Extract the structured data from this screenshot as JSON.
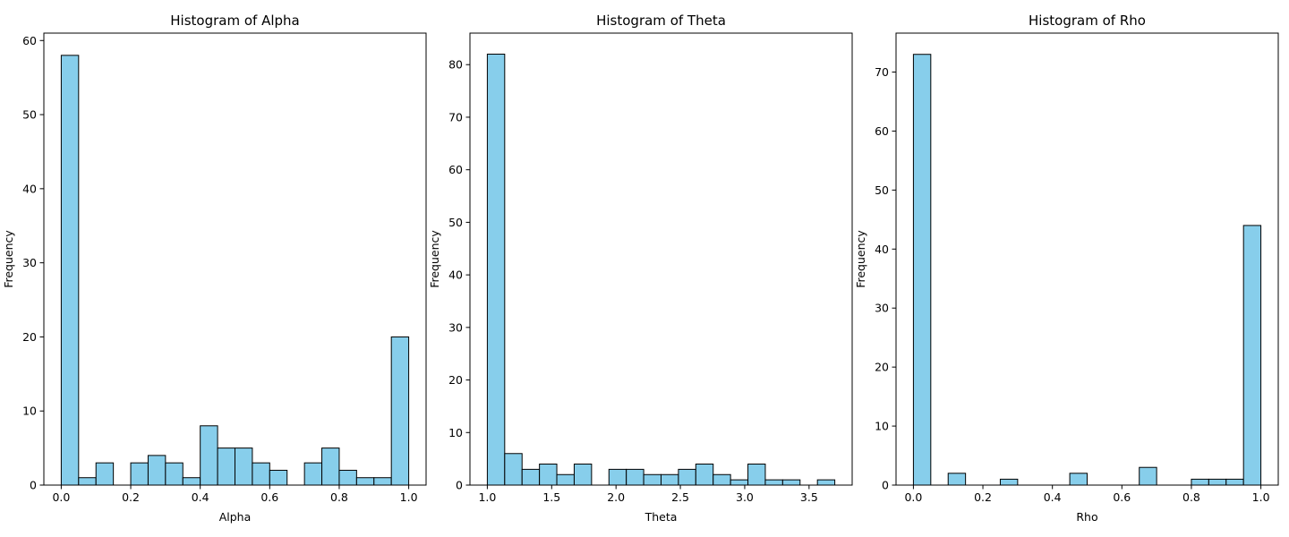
{
  "chart_data": [
    {
      "type": "bar",
      "title": "Histogram of Alpha",
      "xlabel": "Alpha",
      "ylabel": "Frequency",
      "bin_edges": [
        0.0,
        0.05,
        0.1,
        0.15,
        0.2,
        0.25,
        0.3,
        0.35,
        0.4,
        0.45,
        0.5,
        0.55,
        0.6,
        0.65,
        0.7,
        0.75,
        0.8,
        0.85,
        0.9,
        0.95,
        1.0
      ],
      "values": [
        58,
        1,
        3,
        0,
        3,
        4,
        3,
        1,
        8,
        5,
        5,
        3,
        2,
        0,
        3,
        5,
        2,
        1,
        1,
        20
      ],
      "xlim": [
        -0.05,
        1.05
      ],
      "ylim": [
        0,
        61
      ],
      "xticks": [
        0.0,
        0.2,
        0.4,
        0.6,
        0.8,
        1.0
      ],
      "xtick_labels": [
        "0.0",
        "0.2",
        "0.4",
        "0.6",
        "0.8",
        "1.0"
      ],
      "yticks": [
        0,
        10,
        20,
        30,
        40,
        50,
        60
      ],
      "ytick_labels": [
        "0",
        "10",
        "20",
        "30",
        "40",
        "50",
        "60"
      ],
      "bar_color": "#87CEEB",
      "edge_color": "#000000",
      "grid": false
    },
    {
      "type": "bar",
      "title": "Histogram of Theta",
      "xlabel": "Theta",
      "ylabel": "Frequency",
      "bin_edges": [
        1.0,
        1.135,
        1.27,
        1.405,
        1.54,
        1.675,
        1.81,
        1.945,
        2.08,
        2.215,
        2.35,
        2.485,
        2.62,
        2.755,
        2.89,
        3.025,
        3.16,
        3.295,
        3.43,
        3.565,
        3.7
      ],
      "values": [
        82,
        6,
        3,
        4,
        2,
        4,
        0,
        3,
        3,
        2,
        2,
        3,
        4,
        2,
        1,
        4,
        1,
        1,
        0,
        1
      ],
      "xlim": [
        0.865,
        3.835
      ],
      "ylim": [
        0,
        86
      ],
      "xticks": [
        1.0,
        1.5,
        2.0,
        2.5,
        3.0,
        3.5
      ],
      "xtick_labels": [
        "1.0",
        "1.5",
        "2.0",
        "2.5",
        "3.0",
        "3.5"
      ],
      "yticks": [
        0,
        10,
        20,
        30,
        40,
        50,
        60,
        70,
        80
      ],
      "ytick_labels": [
        "0",
        "10",
        "20",
        "30",
        "40",
        "50",
        "60",
        "70",
        "80"
      ],
      "bar_color": "#87CEEB",
      "edge_color": "#000000",
      "grid": false
    },
    {
      "type": "bar",
      "title": "Histogram of Rho",
      "xlabel": "Rho",
      "ylabel": "Frequency",
      "bin_edges": [
        0.0,
        0.05,
        0.1,
        0.15,
        0.2,
        0.25,
        0.3,
        0.35,
        0.4,
        0.45,
        0.5,
        0.55,
        0.6,
        0.65,
        0.7,
        0.75,
        0.8,
        0.85,
        0.9,
        0.95,
        1.0
      ],
      "values": [
        73,
        0,
        2,
        0,
        0,
        1,
        0,
        0,
        0,
        2,
        0,
        0,
        0,
        3,
        0,
        0,
        1,
        1,
        1,
        44
      ],
      "xlim": [
        -0.05,
        1.05
      ],
      "ylim": [
        0,
        76.6
      ],
      "xticks": [
        0.0,
        0.2,
        0.4,
        0.6,
        0.8,
        1.0
      ],
      "xtick_labels": [
        "0.0",
        "0.2",
        "0.4",
        "0.6",
        "0.8",
        "1.0"
      ],
      "yticks": [
        0,
        10,
        20,
        30,
        40,
        50,
        60,
        70
      ],
      "ytick_labels": [
        "0",
        "10",
        "20",
        "30",
        "40",
        "50",
        "60",
        "70"
      ],
      "bar_color": "#87CEEB",
      "edge_color": "#000000",
      "grid": false
    }
  ]
}
